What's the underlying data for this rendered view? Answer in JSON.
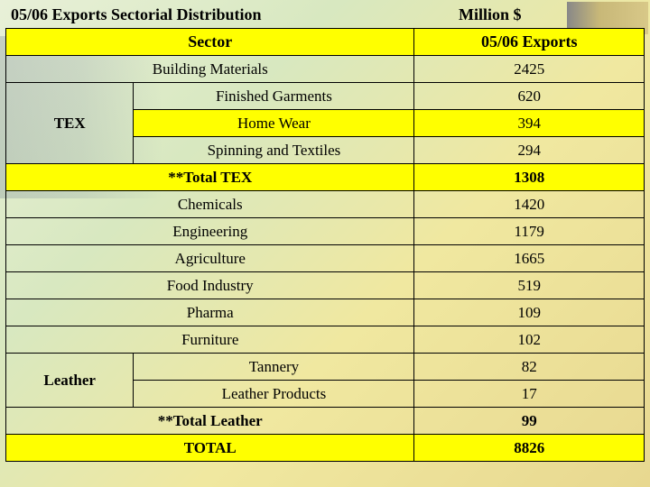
{
  "title": "05/06  Exports Sectorial Distribution",
  "unit": "Million $",
  "header": {
    "sector": "Sector",
    "value": "05/06  Exports"
  },
  "rows": {
    "building_materials": {
      "label": "Building Materials",
      "value": "2425"
    },
    "tex_group": "TEX",
    "finished_garments": {
      "label": "Finished Garments",
      "value": "620"
    },
    "home_wear": {
      "label": "Home Wear",
      "value": "394"
    },
    "spinning_textiles": {
      "label": "Spinning and Textiles",
      "value": "294"
    },
    "total_tex": {
      "label": "**Total TEX",
      "value": "1308"
    },
    "chemicals": {
      "label": "Chemicals",
      "value": "1420"
    },
    "engineering": {
      "label": "Engineering",
      "value": "1179"
    },
    "agriculture": {
      "label": "Agriculture",
      "value": "1665"
    },
    "food_industry": {
      "label": "Food Industry",
      "value": "519"
    },
    "pharma": {
      "label": "Pharma",
      "value": "109"
    },
    "furniture": {
      "label": "Furniture",
      "value": "102"
    },
    "leather_group": "Leather",
    "tannery": {
      "label": "Tannery",
      "value": "82"
    },
    "leather_products": {
      "label": "Leather Products",
      "value": "17"
    },
    "total_leather": {
      "label": "**Total Leather",
      "value": "99"
    },
    "total": {
      "label": "TOTAL",
      "value": "8826"
    }
  },
  "colors": {
    "highlight": "#ffff00",
    "border": "#000000"
  }
}
